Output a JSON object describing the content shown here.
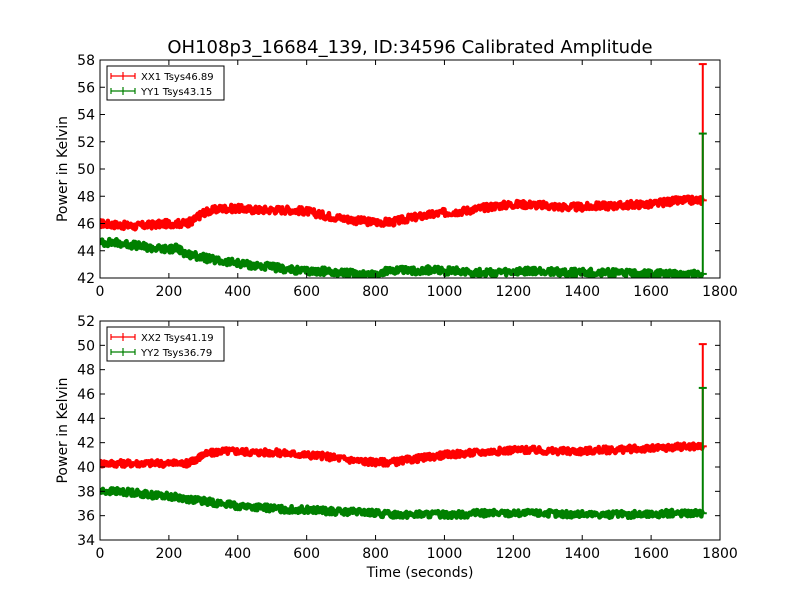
{
  "title": "OH108p3_16684_139, ID:34596 Calibrated Amplitude",
  "colors": {
    "xx": "#ff0000",
    "yy": "#008000",
    "axis": "#000000",
    "background": "#ffffff"
  },
  "chart_data": [
    {
      "type": "line",
      "title": "OH108p3_16684_139, ID:34596 Calibrated Amplitude",
      "xlabel": "",
      "ylabel": "Power in Kelvin",
      "xlim": [
        0,
        1800
      ],
      "ylim": [
        42,
        58
      ],
      "xticks": [
        0,
        200,
        400,
        600,
        800,
        1000,
        1200,
        1400,
        1600,
        1800
      ],
      "yticks": [
        42,
        44,
        46,
        48,
        50,
        52,
        54,
        56,
        58
      ],
      "legend_position": "top-left",
      "series": [
        {
          "name": "XX1 Tsys46.89",
          "color": "#ff0000",
          "x": [
            0,
            50,
            100,
            150,
            200,
            250,
            270,
            300,
            350,
            400,
            450,
            500,
            550,
            600,
            650,
            700,
            750,
            800,
            850,
            900,
            950,
            1000,
            1050,
            1100,
            1150,
            1200,
            1250,
            1300,
            1350,
            1400,
            1450,
            1500,
            1550,
            1600,
            1650,
            1700,
            1750
          ],
          "y": [
            46.0,
            45.9,
            45.8,
            45.9,
            46.0,
            46.0,
            46.2,
            46.8,
            47.1,
            47.1,
            47.0,
            47.0,
            47.0,
            46.9,
            46.6,
            46.4,
            46.2,
            46.1,
            46.1,
            46.4,
            46.6,
            46.8,
            46.9,
            47.1,
            47.3,
            47.4,
            47.4,
            47.3,
            47.2,
            47.2,
            47.3,
            47.3,
            47.4,
            47.4,
            47.6,
            47.7,
            47.7
          ],
          "end_spike": [
            47.7,
            57.7
          ]
        },
        {
          "name": "YY1 Tsys43.15",
          "color": "#008000",
          "x": [
            0,
            50,
            100,
            150,
            200,
            220,
            250,
            300,
            350,
            400,
            450,
            500,
            550,
            600,
            650,
            700,
            750,
            800,
            850,
            900,
            950,
            1000,
            1050,
            1100,
            1150,
            1200,
            1250,
            1300,
            1350,
            1400,
            1450,
            1500,
            1550,
            1600,
            1650,
            1700,
            1750
          ],
          "y": [
            44.6,
            44.6,
            44.4,
            44.2,
            44.1,
            44.2,
            43.8,
            43.5,
            43.2,
            43.1,
            42.9,
            42.8,
            42.6,
            42.5,
            42.5,
            42.4,
            42.3,
            42.3,
            42.6,
            42.5,
            42.6,
            42.5,
            42.5,
            42.4,
            42.4,
            42.4,
            42.5,
            42.5,
            42.4,
            42.4,
            42.4,
            42.4,
            42.3,
            42.3,
            42.3,
            42.3,
            42.3
          ],
          "end_spike": [
            42.3,
            52.6
          ]
        }
      ]
    },
    {
      "type": "line",
      "title": "",
      "xlabel": "Time (seconds)",
      "ylabel": "Power in Kelvin",
      "xlim": [
        0,
        1800
      ],
      "ylim": [
        34,
        52
      ],
      "xticks": [
        0,
        200,
        400,
        600,
        800,
        1000,
        1200,
        1400,
        1600,
        1800
      ],
      "yticks": [
        34,
        36,
        38,
        40,
        42,
        44,
        46,
        48,
        50,
        52
      ],
      "legend_position": "top-left",
      "series": [
        {
          "name": "XX2 Tsys41.19",
          "color": "#ff0000",
          "x": [
            0,
            50,
            100,
            150,
            200,
            250,
            270,
            300,
            350,
            400,
            450,
            500,
            550,
            600,
            650,
            700,
            750,
            800,
            850,
            900,
            950,
            1000,
            1050,
            1100,
            1150,
            1200,
            1250,
            1300,
            1350,
            1400,
            1450,
            1500,
            1550,
            1600,
            1650,
            1700,
            1750
          ],
          "y": [
            40.3,
            40.3,
            40.3,
            40.3,
            40.3,
            40.3,
            40.5,
            41.0,
            41.3,
            41.3,
            41.2,
            41.2,
            41.1,
            41.0,
            40.9,
            40.7,
            40.5,
            40.4,
            40.4,
            40.6,
            40.8,
            41.0,
            41.1,
            41.2,
            41.3,
            41.4,
            41.4,
            41.3,
            41.3,
            41.3,
            41.4,
            41.4,
            41.5,
            41.5,
            41.6,
            41.7,
            41.7
          ],
          "end_spike": [
            41.7,
            50.1
          ]
        },
        {
          "name": "YY2 Tsys36.79",
          "color": "#008000",
          "x": [
            0,
            50,
            100,
            150,
            200,
            250,
            300,
            350,
            400,
            450,
            500,
            550,
            600,
            650,
            700,
            750,
            800,
            850,
            900,
            950,
            1000,
            1050,
            1100,
            1150,
            1200,
            1250,
            1300,
            1350,
            1400,
            1450,
            1500,
            1550,
            1600,
            1650,
            1700,
            1750
          ],
          "y": [
            38.0,
            38.0,
            37.9,
            37.7,
            37.6,
            37.4,
            37.2,
            37.0,
            36.8,
            36.7,
            36.6,
            36.5,
            36.5,
            36.4,
            36.3,
            36.3,
            36.2,
            36.1,
            36.1,
            36.1,
            36.1,
            36.1,
            36.2,
            36.2,
            36.2,
            36.2,
            36.2,
            36.1,
            36.1,
            36.1,
            36.1,
            36.1,
            36.1,
            36.2,
            36.2,
            36.2
          ],
          "end_spike": [
            36.2,
            46.5
          ]
        }
      ]
    }
  ]
}
